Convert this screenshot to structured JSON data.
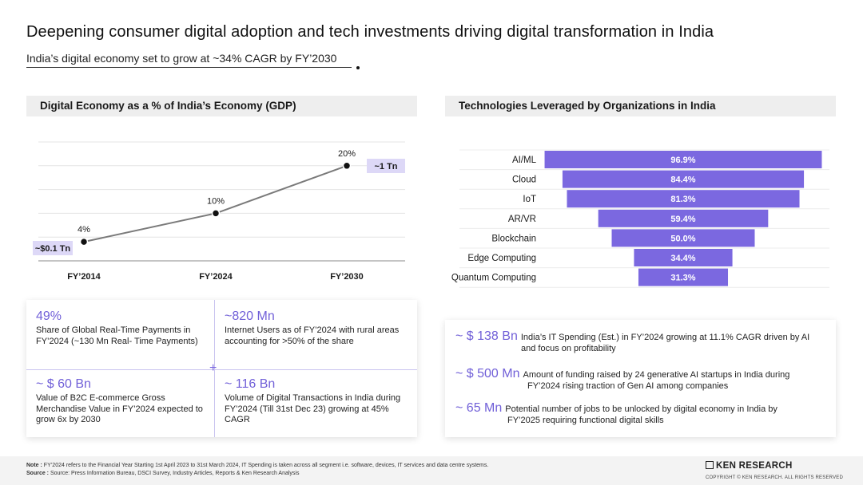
{
  "header": {
    "title": "Deepening consumer digital adoption and tech investments driving digital transformation in India",
    "subtitle": "India’s digital economy set to grow at ~34% CAGR by FY’2030"
  },
  "left_panel": {
    "heading": "Digital Economy as a % of India’s Economy (GDP)",
    "annotation_start": "~$0.1 Tn",
    "annotation_end": "~1 Tn"
  },
  "right_panel": {
    "heading": "Technologies Leveraged by Organizations in India"
  },
  "chart_data": [
    {
      "type": "line",
      "categories": [
        "FY’2014",
        "FY’2024",
        "FY’2030"
      ],
      "values": [
        4,
        10,
        20
      ],
      "data_labels": [
        "4%",
        "10%",
        "20%"
      ],
      "ylim": [
        0,
        25
      ],
      "grid": true,
      "line_color": "#7a7a7a",
      "marker_color": "#111111"
    },
    {
      "type": "bar",
      "orientation": "horizontal-centered",
      "categories": [
        "AI/ML",
        "Cloud",
        "IoT",
        "AR/VR",
        "Blockchain",
        "Edge Computing",
        "Quantum Computing"
      ],
      "values": [
        96.9,
        84.4,
        81.3,
        59.4,
        50.0,
        34.4,
        31.3
      ],
      "data_labels": [
        "96.9%",
        "84.4%",
        "81.3%",
        "59.4%",
        "50.0%",
        "34.4%",
        "31.3%"
      ],
      "xlim": [
        0,
        100
      ],
      "bar_color": "#7b68e0",
      "grid": true
    }
  ],
  "stats": [
    {
      "value": "49%",
      "description": "Share of Global Real-Time Payments in FY’2024 (~130 Mn Real- Time Payments)"
    },
    {
      "value": "~820 Mn",
      "description": "Internet Users as of FY’2024 with rural areas accounting for  >50% of the share"
    },
    {
      "value": "~ $ 60 Bn",
      "description": "Value of B2C E-commerce Gross Merchandise Value in FY’2024 expected to grow 6x by 2030"
    },
    {
      "value": "~ 116 Bn",
      "description": "Volume of Digital Transactions in India during FY’2024 (Till 31st Dec 23) growing at 45% CAGR"
    }
  ],
  "facts": [
    {
      "value": "~ $ 138 Bn",
      "line1": "India’s IT Spending (Est.) in FY’2024 growing at 11.1% CAGR driven by AI",
      "line2": "and focus on profitability"
    },
    {
      "value": "~ $ 500 Mn",
      "line1": "Amount of funding raised by 24 generative AI startups in India during",
      "line2": "FY’2024 rising traction of Gen AI among companies"
    },
    {
      "value": "~ 65 Mn",
      "line1": "Potential number of jobs to be unlocked by digital economy in India by",
      "line2": "FY’2025 requiring functional digital skills"
    }
  ],
  "footer": {
    "note_label": "Note :",
    "note_text": "FY’2024 refers to the Financial Year Starting 1st April 2023 to 31st March 2024, IT Spending is taken across all segment i.e. software, devices, IT services and data centre systems.",
    "source_label": "Source :",
    "source_text": "Source: Press Information Bureau, DSCI Survey, Industry Articles, Reports & Ken Research Analysis",
    "brand": "KEN RESEARCH",
    "copyright": "COPYRIGHT © KEN RESEARCH. ALL RIGHTS RESERVED"
  },
  "colors": {
    "accent": "#7b68e0",
    "annotation_bg": "#ddd8f7",
    "panel_header_bg": "#eeeeee"
  }
}
